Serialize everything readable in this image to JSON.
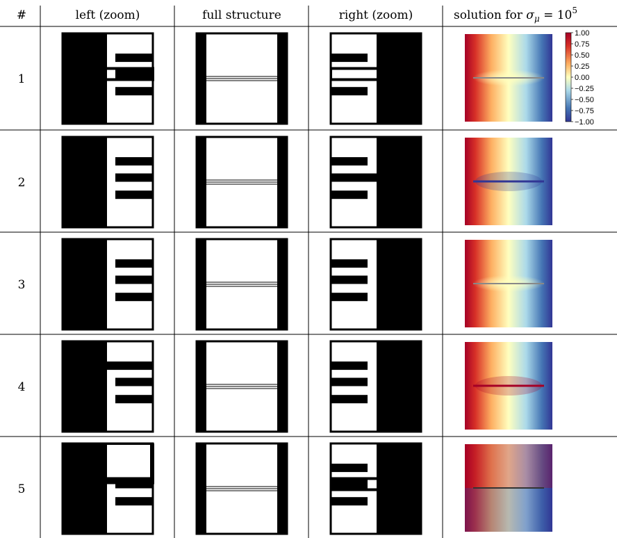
{
  "table": {
    "header": {
      "number": "#",
      "left": "left (zoom)",
      "full": "full structure",
      "right": "right (zoom)",
      "solution_prefix": "solution for ",
      "solution_symbol": "σ",
      "solution_subscript": "μ",
      "solution_equals": " = 10",
      "solution_exponent": "5"
    },
    "rows": [
      {
        "number": "1",
        "left_bars": [
          "mid",
          "up",
          "low"
        ],
        "left_style": "bracket",
        "right_bars": [
          "up",
          "low"
        ],
        "right_style": "bracket_mid_bar",
        "solution": "symmetric"
      },
      {
        "number": "2",
        "left_bars": [
          "up",
          "mid",
          "low"
        ],
        "left_style": "plain",
        "right_bars": [
          "up",
          "mid",
          "low"
        ],
        "right_style": "mid_connected",
        "solution": "center_blue"
      },
      {
        "number": "3",
        "left_bars": [
          "up",
          "mid",
          "low"
        ],
        "left_style": "plain",
        "right_bars": [
          "up",
          "mid",
          "low"
        ],
        "right_style": "plain",
        "solution": "symmetric"
      },
      {
        "number": "4",
        "left_bars": [
          "up",
          "mid",
          "low"
        ],
        "left_style": "top_connected",
        "right_bars": [
          "up",
          "mid",
          "low"
        ],
        "right_style": "plain",
        "solution": "center_red"
      },
      {
        "number": "5",
        "left_bars": [
          "mid",
          "low"
        ],
        "left_style": "bracket_top",
        "right_bars": [
          "up",
          "mid",
          "low"
        ],
        "right_style": "bracket_mid_bar",
        "solution": "split"
      }
    ]
  },
  "colorbar": {
    "ticks": [
      "1.00",
      "0.75",
      "0.50",
      "0.25",
      "0.00",
      "−0.25",
      "−0.50",
      "−0.75",
      "−1.00"
    ],
    "colors": {
      "top": "#a50026",
      "high": "#f46d43",
      "mid": "#ffffbf",
      "low": "#74add1",
      "bottom": "#313695"
    }
  }
}
